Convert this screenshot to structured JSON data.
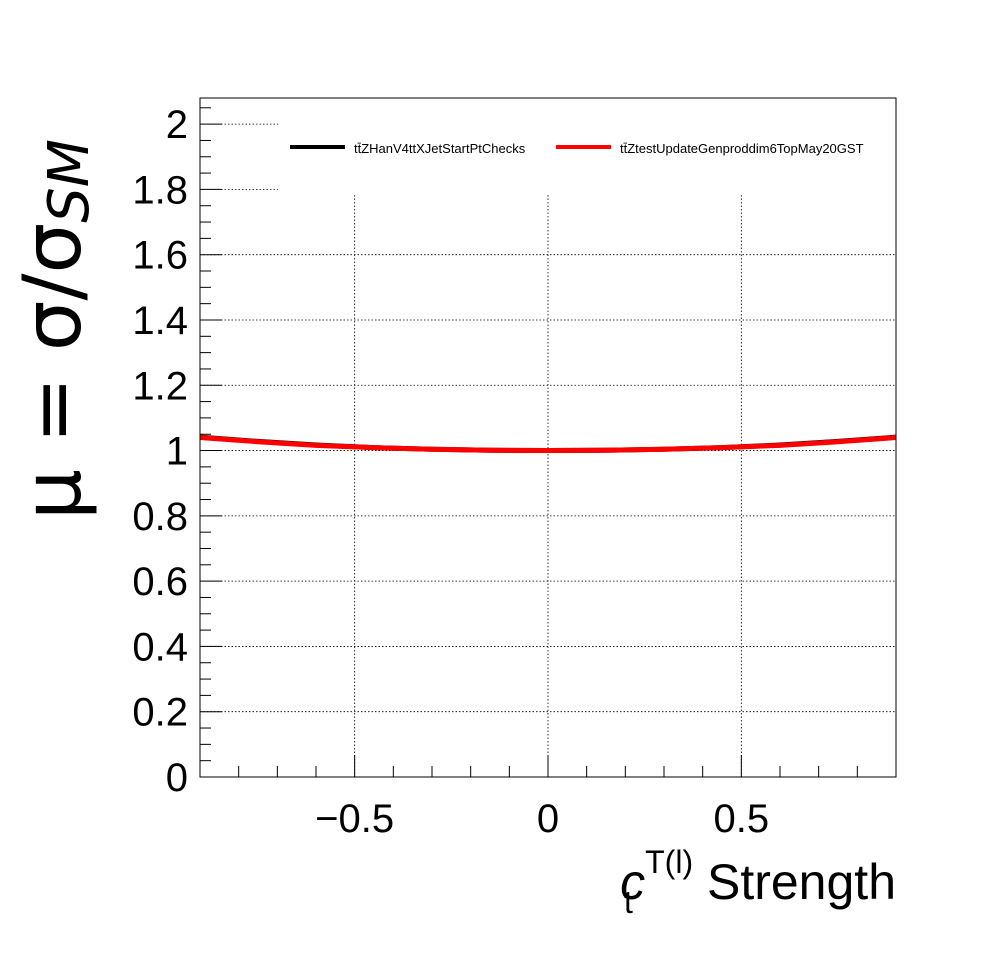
{
  "chart_data": {
    "type": "line",
    "xlabel": {
      "prefix": "c",
      "subscript": "t",
      "superscript": "T(l)",
      "suffix": " Strength"
    },
    "ylabel": {
      "main": "μ = σ/σ",
      "subscript": "SM"
    },
    "xlim": [
      -0.9,
      0.9
    ],
    "ylim": [
      0,
      2.08
    ],
    "x_ticks": [
      -0.5,
      0,
      0.5
    ],
    "x_tick_labels": [
      "−0.5",
      "0",
      "0.5"
    ],
    "y_ticks": [
      0,
      0.2,
      0.4,
      0.6,
      0.8,
      1,
      1.2,
      1.4,
      1.6,
      1.8,
      2
    ],
    "y_tick_labels": [
      "0",
      "0.2",
      "0.4",
      "0.6",
      "0.8",
      "1",
      "1.2",
      "1.4",
      "1.6",
      "1.8",
      "2"
    ],
    "grid": true,
    "legend_position": "top",
    "series": [
      {
        "name": "tt̄ZHanV4ttXJetStartPtChecks",
        "color": "#000000",
        "x": [
          -0.9,
          -0.75,
          -0.6,
          -0.45,
          -0.3,
          -0.15,
          0,
          0.15,
          0.3,
          0.45,
          0.6,
          0.75,
          0.9
        ],
        "y": [
          1.041,
          1.028,
          1.017,
          1.009,
          1.004,
          1.001,
          1.0,
          1.001,
          1.004,
          1.009,
          1.017,
          1.028,
          1.041
        ]
      },
      {
        "name": "tt̄ZtestUpdateGenproddim6TopMay20GST",
        "color": "#ff0000",
        "x": [
          -0.9,
          -0.75,
          -0.6,
          -0.45,
          -0.3,
          -0.15,
          0,
          0.15,
          0.3,
          0.45,
          0.6,
          0.75,
          0.9
        ],
        "y": [
          1.04,
          1.027,
          1.016,
          1.009,
          1.004,
          1.001,
          1.0,
          1.001,
          1.004,
          1.009,
          1.016,
          1.027,
          1.04
        ]
      }
    ]
  }
}
